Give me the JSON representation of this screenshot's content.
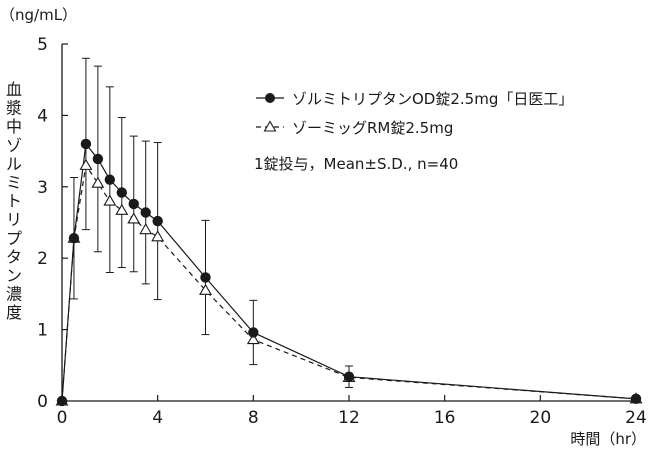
{
  "chart_data": {
    "type": "line",
    "title": "",
    "y_unit": "（ng/mL）",
    "xlabel": "時間（hr）",
    "ylabel": "血漿中ゾルミトリプタン濃度",
    "xlim": [
      0,
      24
    ],
    "ylim": [
      0,
      5
    ],
    "x_ticks": [
      0,
      4,
      8,
      12,
      16,
      20,
      24
    ],
    "y_ticks": [
      0,
      1,
      2,
      3,
      4,
      5
    ],
    "grid": false,
    "legend_position": "top-right",
    "note": "1錠投与，Mean±S.D., n=40",
    "series": [
      {
        "name": "ゾルミトリプタンOD錠2.5mg「日医工」",
        "marker": "filled-circle",
        "line_style": "solid",
        "x": [
          0,
          0.5,
          1,
          1.5,
          2,
          2.5,
          3,
          3.5,
          4,
          6,
          8,
          12,
          24
        ],
        "y": [
          0,
          2.28,
          3.6,
          3.39,
          3.1,
          2.92,
          2.76,
          2.64,
          2.52,
          1.73,
          0.96,
          0.34,
          0.03
        ],
        "sd": [
          0,
          0.85,
          1.2,
          1.3,
          1.3,
          1.05,
          0.95,
          1.0,
          1.1,
          0.8,
          0.45,
          0.15,
          0.02
        ]
      },
      {
        "name": "ゾーミッグRM錠2.5mg",
        "marker": "open-triangle",
        "line_style": "dashed",
        "x": [
          0,
          0.5,
          1,
          1.5,
          2,
          2.5,
          3,
          3.5,
          4,
          6,
          8,
          12,
          24
        ],
        "y": [
          0,
          2.28,
          3.3,
          3.05,
          2.8,
          2.67,
          2.55,
          2.4,
          2.3,
          1.55,
          0.86,
          0.33,
          0.03
        ]
      }
    ]
  }
}
